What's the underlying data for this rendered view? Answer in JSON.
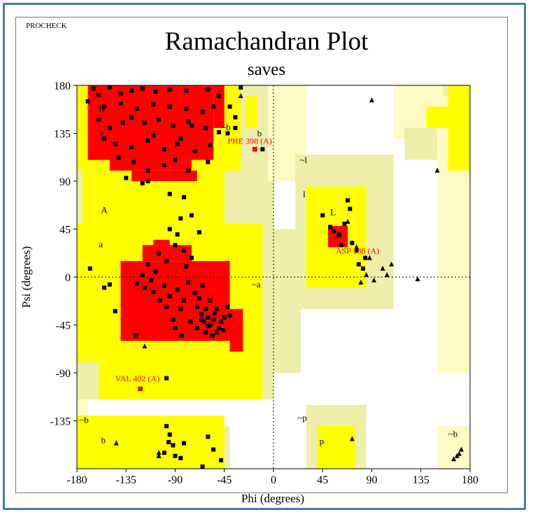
{
  "header": {
    "program": "PROCHECK"
  },
  "chart_data": {
    "type": "scatter",
    "title": "Ramachandran Plot",
    "subtitle": "saves",
    "xlabel": "Phi (degrees)",
    "ylabel": "Psi (degrees)",
    "xlim": [
      -180,
      180
    ],
    "ylim": [
      -180,
      180
    ],
    "x_ticks": [
      -180,
      -135,
      -90,
      -45,
      0,
      45,
      90,
      135,
      180
    ],
    "y_ticks": [
      180,
      135,
      90,
      45,
      0,
      -45,
      -90,
      -135
    ],
    "colors": {
      "core": "#ff0000",
      "allowed": "#ffff00",
      "generous": "#eeeeaa",
      "disallowed": "#fffac4",
      "label": "#ff0000",
      "point": "#000000"
    },
    "region_labels": [
      "B",
      "b",
      "A",
      "a",
      "~b",
      "b",
      "~l",
      "l",
      "L",
      "~a",
      "~b",
      "b",
      "~p",
      "p",
      "~b"
    ],
    "outlier_labels": [
      "PHE 398 (A)",
      "ASP 188 (A)",
      "VAL 402 (A)"
    ],
    "series": [
      {
        "marker": "square",
        "points": [
          [
            -165,
            177
          ],
          [
            -160,
            171
          ],
          [
            -150,
            178
          ],
          [
            -140,
            172
          ],
          [
            -130,
            175
          ],
          [
            -120,
            177
          ],
          [
            -108,
            174
          ],
          [
            -95,
            176
          ],
          [
            -80,
            175
          ],
          [
            -170,
            165
          ],
          [
            -155,
            160
          ],
          [
            -140,
            163
          ],
          [
            -125,
            158
          ],
          [
            -110,
            162
          ],
          [
            -95,
            160
          ],
          [
            -80,
            158
          ],
          [
            -65,
            155
          ],
          [
            -55,
            160
          ],
          [
            -160,
            148
          ],
          [
            -150,
            140
          ],
          [
            -138,
            145
          ],
          [
            -130,
            150
          ],
          [
            -118,
            145
          ],
          [
            -105,
            148
          ],
          [
            -92,
            142
          ],
          [
            -78,
            146
          ],
          [
            -62,
            140
          ],
          [
            -50,
            136
          ],
          [
            -42,
            135
          ],
          [
            -155,
            130
          ],
          [
            -145,
            125
          ],
          [
            -130,
            122
          ],
          [
            -115,
            128
          ],
          [
            -100,
            120
          ],
          [
            -88,
            125
          ],
          [
            -72,
            118
          ],
          [
            -58,
            124
          ],
          [
            -142,
            112
          ],
          [
            -128,
            108
          ],
          [
            -115,
            100
          ],
          [
            -100,
            105
          ],
          [
            -90,
            110
          ],
          [
            -78,
            100
          ],
          [
            -60,
            108
          ],
          [
            -135,
            93
          ],
          [
            -115,
            90
          ],
          [
            -95,
            78
          ],
          [
            -82,
            75
          ],
          [
            -75,
            58
          ],
          [
            -85,
            55
          ],
          [
            -95,
            45
          ],
          [
            -88,
            40
          ],
          [
            -90,
            30
          ],
          [
            -82,
            25
          ],
          [
            -75,
            18
          ],
          [
            -68,
            42
          ],
          [
            -80,
            10
          ],
          [
            -105,
            22
          ],
          [
            -98,
            15
          ],
          [
            -115,
            12
          ],
          [
            -108,
            5
          ],
          [
            -120,
            2
          ],
          [
            -112,
            -3
          ],
          [
            -125,
            -6
          ],
          [
            -118,
            -10
          ],
          [
            -110,
            -14
          ],
          [
            -100,
            -8
          ],
          [
            -95,
            -18
          ],
          [
            -88,
            -12
          ],
          [
            -82,
            -22
          ],
          [
            -78,
            -5
          ],
          [
            -72,
            -15
          ],
          [
            -70,
            -28
          ],
          [
            -66,
            -35
          ],
          [
            -64,
            -42
          ],
          [
            -60,
            -38
          ],
          [
            -58,
            -45
          ],
          [
            -55,
            -40
          ],
          [
            -52,
            -30
          ],
          [
            -50,
            -48
          ],
          [
            -62,
            -52
          ],
          [
            -56,
            -55
          ],
          [
            -48,
            -42
          ],
          [
            -45,
            -38
          ],
          [
            -68,
            -20
          ],
          [
            -65,
            -8
          ],
          [
            -58,
            -22
          ],
          [
            -62,
            -30
          ],
          [
            -54,
            -34
          ],
          [
            -60,
            -46
          ],
          [
            -66,
            -40
          ],
          [
            -70,
            -48
          ],
          [
            -52,
            -52
          ],
          [
            -46,
            -50
          ],
          [
            -40,
            -36
          ],
          [
            -42,
            -28
          ],
          [
            -85,
            -30
          ],
          [
            -92,
            -40
          ],
          [
            -98,
            -28
          ],
          [
            -104,
            -22
          ],
          [
            -90,
            -48
          ],
          [
            -84,
            -55
          ],
          [
            -76,
            -42
          ],
          [
            -145,
            -32
          ],
          [
            -150,
            -7
          ],
          [
            -155,
            -10
          ],
          [
            -168,
            8
          ],
          [
            -126,
            -55
          ],
          [
            -98,
            -95
          ],
          [
            -95,
            -148
          ],
          [
            -96,
            -155
          ],
          [
            -92,
            -158
          ],
          [
            -90,
            -168
          ],
          [
            -85,
            -170
          ],
          [
            -100,
            -165
          ],
          [
            -82,
            -156
          ],
          [
            -98,
            -140
          ],
          [
            -60,
            -150
          ],
          [
            -55,
            -162
          ],
          [
            -48,
            -172
          ],
          [
            -65,
            -178
          ],
          [
            -30,
            178
          ],
          [
            -50,
            170
          ],
          [
            -60,
            176
          ],
          [
            -40,
            160
          ],
          [
            -35,
            150
          ],
          [
            -35,
            140
          ],
          [
            -120,
            88
          ],
          [
            -75,
            142
          ],
          [
            -110,
            133
          ],
          [
            -85,
            130
          ],
          [
            45,
            58
          ],
          [
            52,
            47
          ],
          [
            55,
            43
          ],
          [
            58,
            36
          ],
          [
            62,
            30
          ],
          [
            65,
            50
          ],
          [
            68,
            72
          ],
          [
            70,
            64
          ],
          [
            72,
            32
          ],
          [
            76,
            25
          ],
          [
            78,
            12
          ],
          [
            82,
            8
          ],
          [
            84,
            18
          ],
          [
            60,
            40
          ],
          [
            -10,
            120
          ]
        ]
      },
      {
        "marker": "triangle",
        "points": [
          [
            -30,
            170
          ],
          [
            90,
            166
          ],
          [
            150,
            100
          ],
          [
            68,
            52
          ],
          [
            76,
            28
          ],
          [
            88,
            18
          ],
          [
            85,
            2
          ],
          [
            92,
            -3
          ],
          [
            100,
            8
          ],
          [
            104,
            2
          ],
          [
            108,
            12
          ],
          [
            132,
            -2
          ],
          [
            80,
            -5
          ],
          [
            -144,
            -156
          ],
          [
            -118,
            -65
          ],
          [
            -105,
            -165
          ],
          [
            -105,
            -168
          ],
          [
            72,
            -152
          ],
          [
            168,
            -168
          ],
          [
            170,
            -166
          ],
          [
            172,
            -162
          ],
          [
            165,
            -171
          ]
        ]
      }
    ]
  }
}
